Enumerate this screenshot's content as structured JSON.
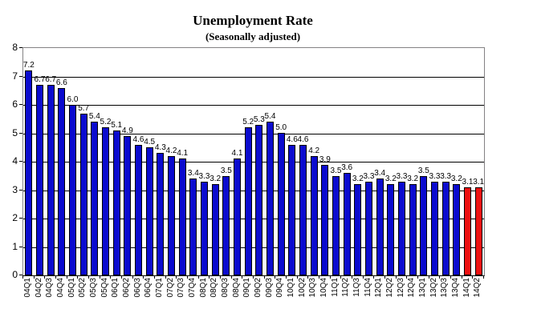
{
  "chart_data": {
    "type": "bar",
    "title": "Unemployment Rate",
    "subtitle": "(Seasonally adjusted)",
    "categories": [
      "04Q1",
      "04Q2",
      "04Q3",
      "04Q4",
      "05Q1",
      "05Q2",
      "05Q3",
      "05Q4",
      "06Q1",
      "06Q2",
      "06Q3",
      "06Q4",
      "07Q1",
      "07Q2",
      "07Q3",
      "07Q4",
      "08Q1",
      "08Q2",
      "08Q3",
      "08Q4",
      "09Q1",
      "09Q2",
      "09Q3",
      "09Q4",
      "10Q1",
      "10Q2",
      "10Q3",
      "10Q4",
      "11Q1",
      "11Q2",
      "11Q3",
      "11Q4",
      "12Q1",
      "12Q2",
      "12Q3",
      "12Q4",
      "13Q1",
      "13Q2",
      "13Q3",
      "13Q4",
      "14Q1",
      "14Q2"
    ],
    "values": [
      7.2,
      6.7,
      6.7,
      6.6,
      6.0,
      5.7,
      5.4,
      5.2,
      5.1,
      4.9,
      4.6,
      4.5,
      4.3,
      4.2,
      4.1,
      3.4,
      3.3,
      3.2,
      3.5,
      4.1,
      5.2,
      5.3,
      5.4,
      5.0,
      4.6,
      4.6,
      4.2,
      3.9,
      3.5,
      3.6,
      3.2,
      3.3,
      3.4,
      3.2,
      3.3,
      3.2,
      3.5,
      3.3,
      3.3,
      3.2,
      3.1,
      3.1
    ],
    "highlighted_categories": [
      "14Q1",
      "14Q2"
    ],
    "colors": {
      "bar": "#0B0BCF",
      "highlight": "#EE1111",
      "bar_border": "#000000",
      "grid": "#000000",
      "plot_border": "#848284",
      "text": "#000000",
      "background": "#FFFFFF"
    },
    "xlabel": "",
    "ylabel": "",
    "ylim": [
      0,
      8
    ],
    "yticks": [
      0,
      1,
      2,
      3,
      4,
      5,
      6,
      7,
      8
    ],
    "grid": true,
    "legend_position": "none",
    "data_labels": "outside-end, one decimal",
    "x_label_rotation_deg": -90
  }
}
